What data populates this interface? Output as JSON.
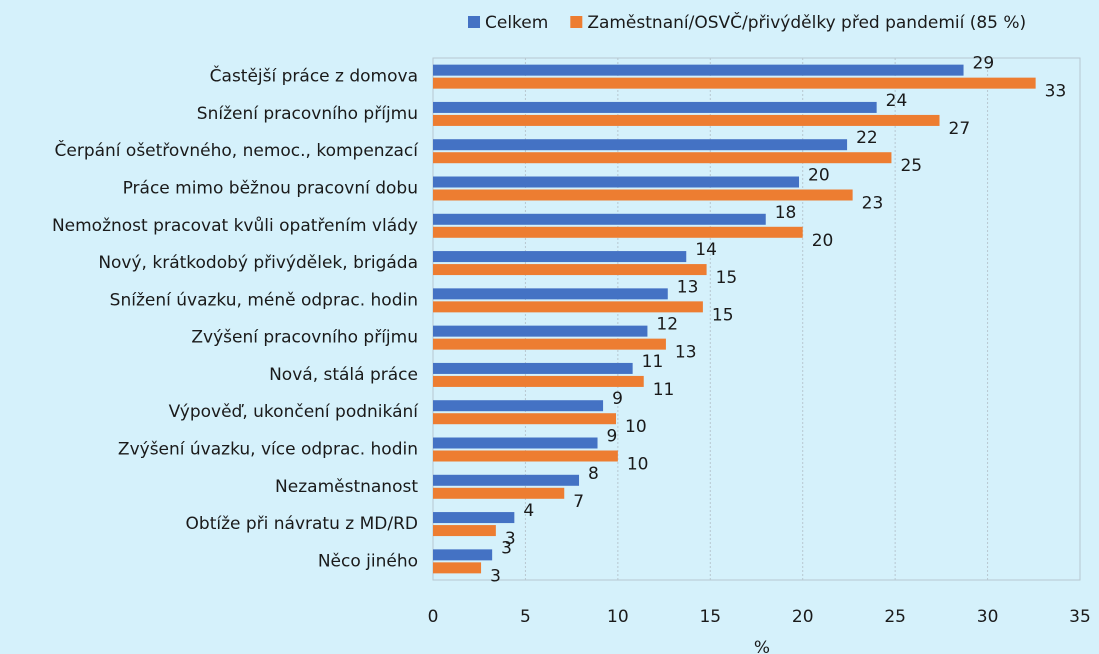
{
  "chart_data": {
    "type": "bar",
    "orientation": "horizontal",
    "categories": [
      "Častější práce z domova",
      "Snížení pracovního příjmu",
      "Čerpání ošetřovného, nemoc., kompenzací",
      "Práce mimo běžnou pracovní dobu",
      "Nemožnost pracovat kvůli opatřením vlády",
      "Nový, krátkodobý přivýdělek, brigáda",
      "Snížení úvazku, méně odprac. hodin",
      "Zvýšení pracovního příjmu",
      "Nová, stálá práce",
      "Výpověď, ukončení podnikání",
      "Zvýšení úvazku, více odprac. hodin",
      "Nezaměstnanost",
      "Obtíže při návratu z MD/RD",
      "Něco jiného"
    ],
    "series": [
      {
        "name": "Celkem",
        "color": "#4472c4",
        "values": [
          28.7,
          24.0,
          22.4,
          19.8,
          18.0,
          13.7,
          12.7,
          11.6,
          10.8,
          9.2,
          8.9,
          7.9,
          4.4,
          3.2
        ],
        "value_labels": [
          "29",
          "24",
          "22",
          "20",
          "18",
          "14",
          "13",
          "12",
          "11",
          "9",
          "9",
          "8",
          "4",
          "3"
        ]
      },
      {
        "name": "Zaměstnaní/OSVČ/přivýdělky před pandemií (85 %)",
        "color": "#ed7d31",
        "values": [
          32.6,
          27.4,
          24.8,
          22.7,
          20.0,
          14.8,
          14.6,
          12.6,
          11.4,
          9.9,
          10.0,
          7.1,
          3.4,
          2.6
        ],
        "value_labels": [
          "33",
          "27",
          "25",
          "23",
          "20",
          "15",
          "15",
          "13",
          "11",
          "10",
          "10",
          "7",
          "3",
          "3"
        ]
      }
    ],
    "xlabel": "%",
    "xlim": [
      0,
      35
    ],
    "xticks": [
      0,
      5,
      10,
      15,
      20,
      25,
      30,
      35
    ],
    "grid": true,
    "legend": "top"
  }
}
